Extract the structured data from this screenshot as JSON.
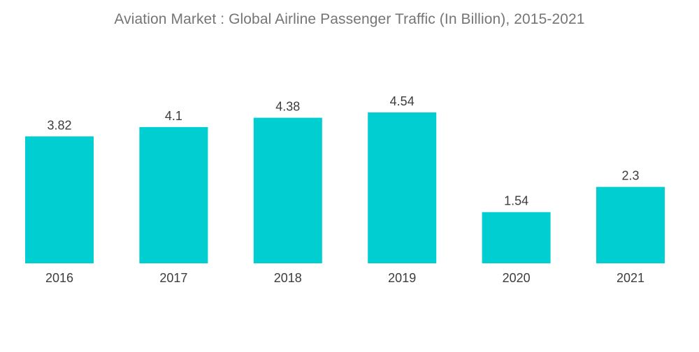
{
  "chart_data": {
    "type": "bar",
    "title": "Aviation Market : Global Airline Passenger Traffic (In Billion), 2015-2021",
    "categories": [
      "2016",
      "2017",
      "2018",
      "2019",
      "2020",
      "2021"
    ],
    "values": [
      3.82,
      4.1,
      4.38,
      4.54,
      1.54,
      2.3
    ],
    "value_labels": [
      "3.82",
      "4.1",
      "4.38",
      "4.54",
      "1.54",
      "2.3"
    ],
    "xlabel": "",
    "ylabel": "",
    "ylim": [
      0,
      4.54
    ],
    "grid": false,
    "legend": "none",
    "bar_color": "#00CED1"
  }
}
